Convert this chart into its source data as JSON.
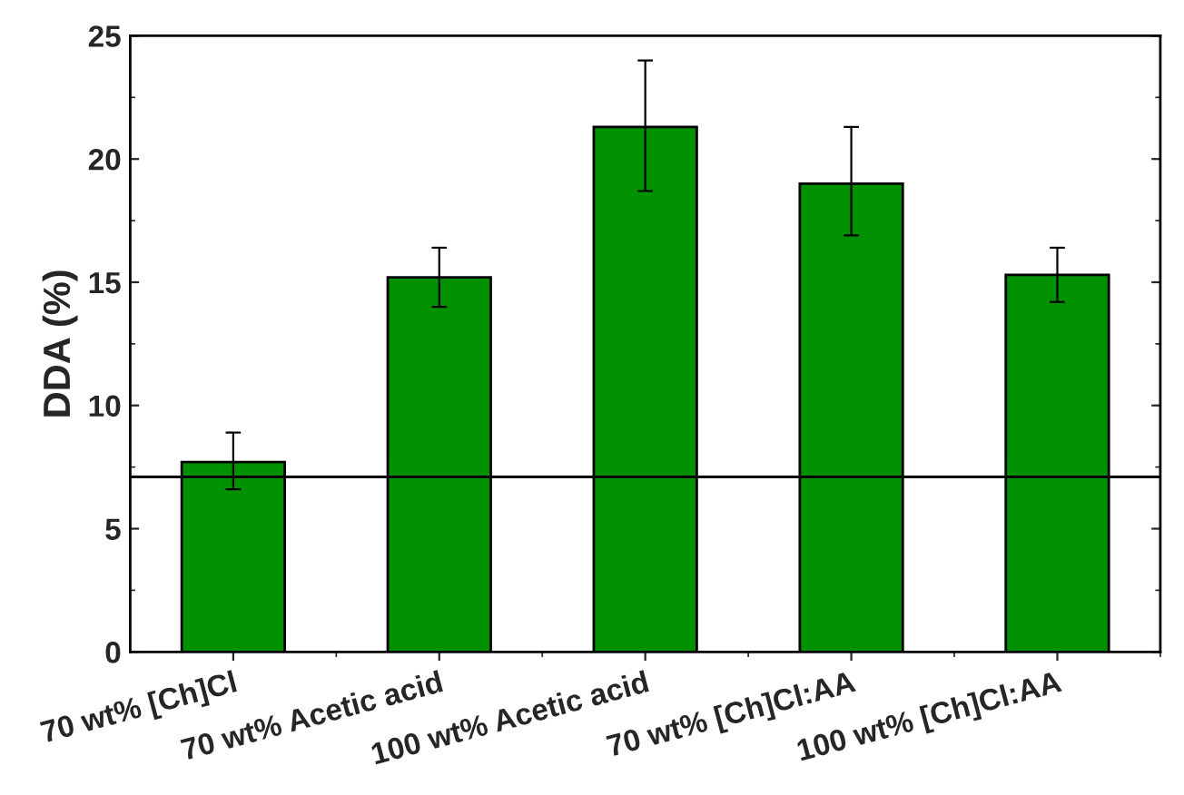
{
  "chart_data": {
    "type": "bar",
    "ylabel": "DDA (%)",
    "categories": [
      "70 wt% [Ch]Cl",
      "70 wt% Acetic acid",
      "100 wt% Acetic acid",
      "70 wt% [Ch]Cl:AA",
      "100 wt% [Ch]Cl:AA"
    ],
    "values": [
      7.7,
      15.2,
      21.3,
      19.0,
      15.3
    ],
    "errors": [
      [
        6.6,
        8.9
      ],
      [
        14.0,
        16.4
      ],
      [
        18.7,
        24.0
      ],
      [
        16.9,
        21.3
      ],
      [
        14.2,
        16.4
      ]
    ],
    "color": "#009100",
    "ylim": [
      0,
      25
    ],
    "yticks": [
      0,
      5,
      10,
      15,
      20,
      25
    ],
    "ref_lines": [
      {
        "axis": "y",
        "value": 7.1,
        "color": "#000000"
      }
    ],
    "grid": false,
    "legend": false
  }
}
